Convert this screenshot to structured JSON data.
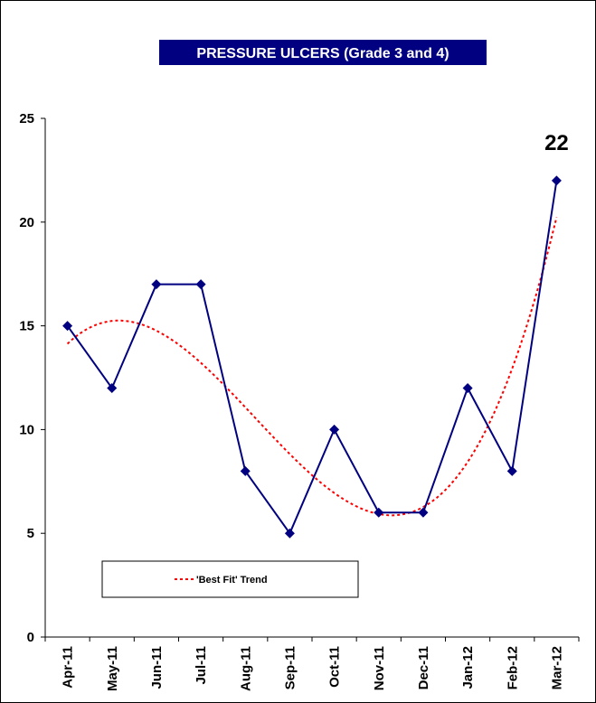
{
  "chart_data": {
    "type": "line",
    "title": "PRESSURE ULCERS (Grade 3 and 4)",
    "categories": [
      "Apr-11",
      "May-11",
      "Jun-11",
      "Jul-11",
      "Aug-11",
      "Sep-11",
      "Oct-11",
      "Nov-11",
      "Dec-11",
      "Jan-12",
      "Feb-12",
      "Mar-12"
    ],
    "series": [
      {
        "values": [
          15,
          12,
          17,
          17,
          8,
          5,
          10,
          6,
          6,
          12,
          8,
          22
        ],
        "color": "#000080",
        "marker": "diamond"
      }
    ],
    "trend": {
      "name": "'Best Fit' Trend",
      "type": "polynomial",
      "color": "#ff0000",
      "style": "dotted"
    },
    "ylim": [
      0,
      25
    ],
    "yticks": [
      0,
      5,
      10,
      15,
      20,
      25
    ],
    "annotation": {
      "text": "22",
      "category": "Mar-12"
    },
    "grid": false,
    "legend": {
      "placement": "bottom-left"
    },
    "colors": {
      "title_bg": "#000080",
      "title_text": "#ffffff"
    }
  }
}
